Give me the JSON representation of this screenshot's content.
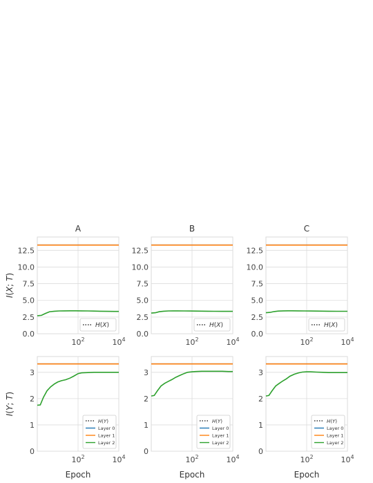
{
  "chart_data": [
    {
      "type": "line",
      "panel": "A",
      "column_title": "A",
      "row": "top",
      "ylabel": "I(X; T)",
      "xlabel": "",
      "xscale": "log",
      "xlim": [
        1,
        10000
      ],
      "ylim": [
        0,
        14.5
      ],
      "yticks": [
        0.0,
        2.5,
        5.0,
        7.5,
        10.0,
        12.5
      ],
      "xticks": [
        100,
        10000
      ],
      "xtick_labels": [
        "10^2",
        "10^4"
      ],
      "legend_position": "bottom-right",
      "series": [
        {
          "name": "H(X)",
          "style": "dotted",
          "color": "#333333",
          "x": [],
          "y": []
        },
        {
          "name": "",
          "color": "#1f77b4",
          "x": [
            1,
            10000
          ],
          "y": [
            13.29,
            13.29
          ]
        },
        {
          "name": "",
          "color": "#ff7f0e",
          "x": [
            1,
            10000
          ],
          "y": [
            13.29,
            13.29
          ]
        },
        {
          "name": "",
          "color": "#2ca02c",
          "x": [
            1,
            1.6,
            2.5,
            4,
            7,
            12,
            20,
            40,
            80,
            150,
            300,
            600,
            1200,
            3000,
            6000,
            10000
          ],
          "y": [
            2.7,
            2.75,
            3.05,
            3.3,
            3.38,
            3.42,
            3.43,
            3.44,
            3.44,
            3.43,
            3.42,
            3.4,
            3.38,
            3.36,
            3.35,
            3.35
          ]
        }
      ]
    },
    {
      "type": "line",
      "panel": "B",
      "column_title": "B",
      "row": "top",
      "ylabel": "",
      "xlabel": "",
      "xscale": "log",
      "xlim": [
        1,
        10000
      ],
      "ylim": [
        0,
        14.5
      ],
      "yticks": [
        0.0,
        2.5,
        5.0,
        7.5,
        10.0,
        12.5
      ],
      "xticks": [
        100,
        10000
      ],
      "xtick_labels": [
        "10^2",
        "10^4"
      ],
      "legend_position": "bottom-right",
      "series": [
        {
          "name": "H(X)",
          "style": "dotted",
          "color": "#333333",
          "x": [],
          "y": []
        },
        {
          "name": "",
          "color": "#1f77b4",
          "x": [
            1,
            10000
          ],
          "y": [
            13.29,
            13.29
          ]
        },
        {
          "name": "",
          "color": "#ff7f0e",
          "x": [
            1,
            10000
          ],
          "y": [
            13.29,
            13.29
          ]
        },
        {
          "name": "",
          "color": "#2ca02c",
          "x": [
            1,
            1.6,
            2.5,
            4,
            7,
            12,
            20,
            40,
            80,
            150,
            300,
            600,
            1200,
            3000,
            6000,
            10000
          ],
          "y": [
            3.1,
            3.15,
            3.3,
            3.38,
            3.42,
            3.43,
            3.43,
            3.42,
            3.41,
            3.4,
            3.39,
            3.38,
            3.37,
            3.36,
            3.36,
            3.36
          ]
        }
      ]
    },
    {
      "type": "line",
      "panel": "C",
      "column_title": "C",
      "row": "top",
      "ylabel": "",
      "xlabel": "",
      "xscale": "log",
      "xlim": [
        1,
        10000
      ],
      "ylim": [
        0,
        14.5
      ],
      "yticks": [
        0.0,
        2.5,
        5.0,
        7.5,
        10.0,
        12.5
      ],
      "xticks": [
        100,
        10000
      ],
      "xtick_labels": [
        "10^2",
        "10^4"
      ],
      "legend_position": "bottom-right",
      "series": [
        {
          "name": "H(X)",
          "style": "dotted",
          "color": "#333333",
          "x": [],
          "y": []
        },
        {
          "name": "",
          "color": "#1f77b4",
          "x": [
            1,
            10000
          ],
          "y": [
            13.29,
            13.29
          ]
        },
        {
          "name": "",
          "color": "#ff7f0e",
          "x": [
            1,
            10000
          ],
          "y": [
            13.29,
            13.29
          ]
        },
        {
          "name": "",
          "color": "#2ca02c",
          "x": [
            1,
            1.6,
            2.5,
            4,
            7,
            12,
            20,
            40,
            80,
            150,
            300,
            600,
            1200,
            3000,
            6000,
            10000
          ],
          "y": [
            3.15,
            3.2,
            3.32,
            3.4,
            3.43,
            3.44,
            3.44,
            3.43,
            3.42,
            3.41,
            3.4,
            3.39,
            3.38,
            3.37,
            3.37,
            3.37
          ]
        }
      ]
    },
    {
      "type": "line",
      "panel": "A",
      "column_title": "",
      "row": "bottom",
      "ylabel": "I(Y; T)",
      "xlabel": "Epoch",
      "xscale": "log",
      "xlim": [
        1,
        10000
      ],
      "ylim": [
        0,
        3.6
      ],
      "yticks": [
        0,
        1,
        2,
        3
      ],
      "xticks": [
        100,
        10000
      ],
      "xtick_labels": [
        "10^2",
        "10^4"
      ],
      "legend_position": "bottom-right",
      "series": [
        {
          "name": "H(Y)",
          "style": "dotted",
          "color": "#333333",
          "x": [
            1,
            10000
          ],
          "y": [
            3.32,
            3.32
          ]
        },
        {
          "name": "Layer 0",
          "color": "#1f77b4",
          "x": [
            1,
            10000
          ],
          "y": [
            3.32,
            3.32
          ]
        },
        {
          "name": "Layer 1",
          "color": "#ff7f0e",
          "x": [
            1,
            10000
          ],
          "y": [
            3.32,
            3.32
          ]
        },
        {
          "name": "Layer 2",
          "color": "#2ca02c",
          "x": [
            1,
            1.4,
            2,
            3,
            4.5,
            7,
            10,
            15,
            25,
            40,
            60,
            100,
            150,
            300,
            600,
            1200,
            3000,
            6000,
            10000
          ],
          "y": [
            1.75,
            1.76,
            2.05,
            2.3,
            2.45,
            2.56,
            2.63,
            2.68,
            2.72,
            2.78,
            2.85,
            2.95,
            2.98,
            2.99,
            3.0,
            3.0,
            3.0,
            3.0,
            3.0
          ]
        }
      ]
    },
    {
      "type": "line",
      "panel": "B",
      "column_title": "",
      "row": "bottom",
      "ylabel": "",
      "xlabel": "Epoch",
      "xscale": "log",
      "xlim": [
        1,
        10000
      ],
      "ylim": [
        0,
        3.6
      ],
      "yticks": [
        0,
        1,
        2,
        3
      ],
      "xticks": [
        100,
        10000
      ],
      "xtick_labels": [
        "10^2",
        "10^4"
      ],
      "legend_position": "bottom-right",
      "series": [
        {
          "name": "H(Y)",
          "style": "dotted",
          "color": "#333333",
          "x": [
            1,
            10000
          ],
          "y": [
            3.32,
            3.32
          ]
        },
        {
          "name": "Layer 0",
          "color": "#1f77b4",
          "x": [
            1,
            10000
          ],
          "y": [
            3.32,
            3.32
          ]
        },
        {
          "name": "Layer 1",
          "color": "#ff7f0e",
          "x": [
            1,
            10000
          ],
          "y": [
            3.32,
            3.32
          ]
        },
        {
          "name": "Layer 2",
          "color": "#2ca02c",
          "x": [
            1,
            1.4,
            2,
            3,
            4.5,
            7,
            10,
            15,
            25,
            40,
            60,
            100,
            150,
            300,
            600,
            1200,
            3000,
            6000,
            10000
          ],
          "y": [
            2.1,
            2.12,
            2.3,
            2.48,
            2.58,
            2.66,
            2.72,
            2.8,
            2.88,
            2.95,
            3.0,
            3.02,
            3.03,
            3.04,
            3.04,
            3.04,
            3.04,
            3.03,
            3.03
          ]
        }
      ]
    },
    {
      "type": "line",
      "panel": "C",
      "column_title": "",
      "row": "bottom",
      "ylabel": "",
      "xlabel": "Epoch",
      "xscale": "log",
      "xlim": [
        1,
        10000
      ],
      "ylim": [
        0,
        3.6
      ],
      "yticks": [
        0,
        1,
        2,
        3
      ],
      "xticks": [
        100,
        10000
      ],
      "xtick_labels": [
        "10^2",
        "10^4"
      ],
      "legend_position": "bottom-right",
      "series": [
        {
          "name": "H(Y)",
          "style": "dotted",
          "color": "#333333",
          "x": [
            1,
            10000
          ],
          "y": [
            3.32,
            3.32
          ]
        },
        {
          "name": "Layer 0",
          "color": "#1f77b4",
          "x": [
            1,
            10000
          ],
          "y": [
            3.32,
            3.32
          ]
        },
        {
          "name": "Layer 1",
          "color": "#ff7f0e",
          "x": [
            1,
            10000
          ],
          "y": [
            3.32,
            3.32
          ]
        },
        {
          "name": "Layer 2",
          "color": "#2ca02c",
          "x": [
            1,
            1.4,
            2,
            3,
            4.5,
            7,
            10,
            15,
            25,
            40,
            60,
            100,
            150,
            300,
            600,
            1200,
            3000,
            6000,
            10000
          ],
          "y": [
            2.1,
            2.12,
            2.3,
            2.48,
            2.58,
            2.68,
            2.75,
            2.85,
            2.93,
            2.98,
            3.01,
            3.02,
            3.02,
            3.01,
            3.0,
            2.99,
            2.99,
            2.99,
            2.99
          ]
        }
      ]
    }
  ]
}
